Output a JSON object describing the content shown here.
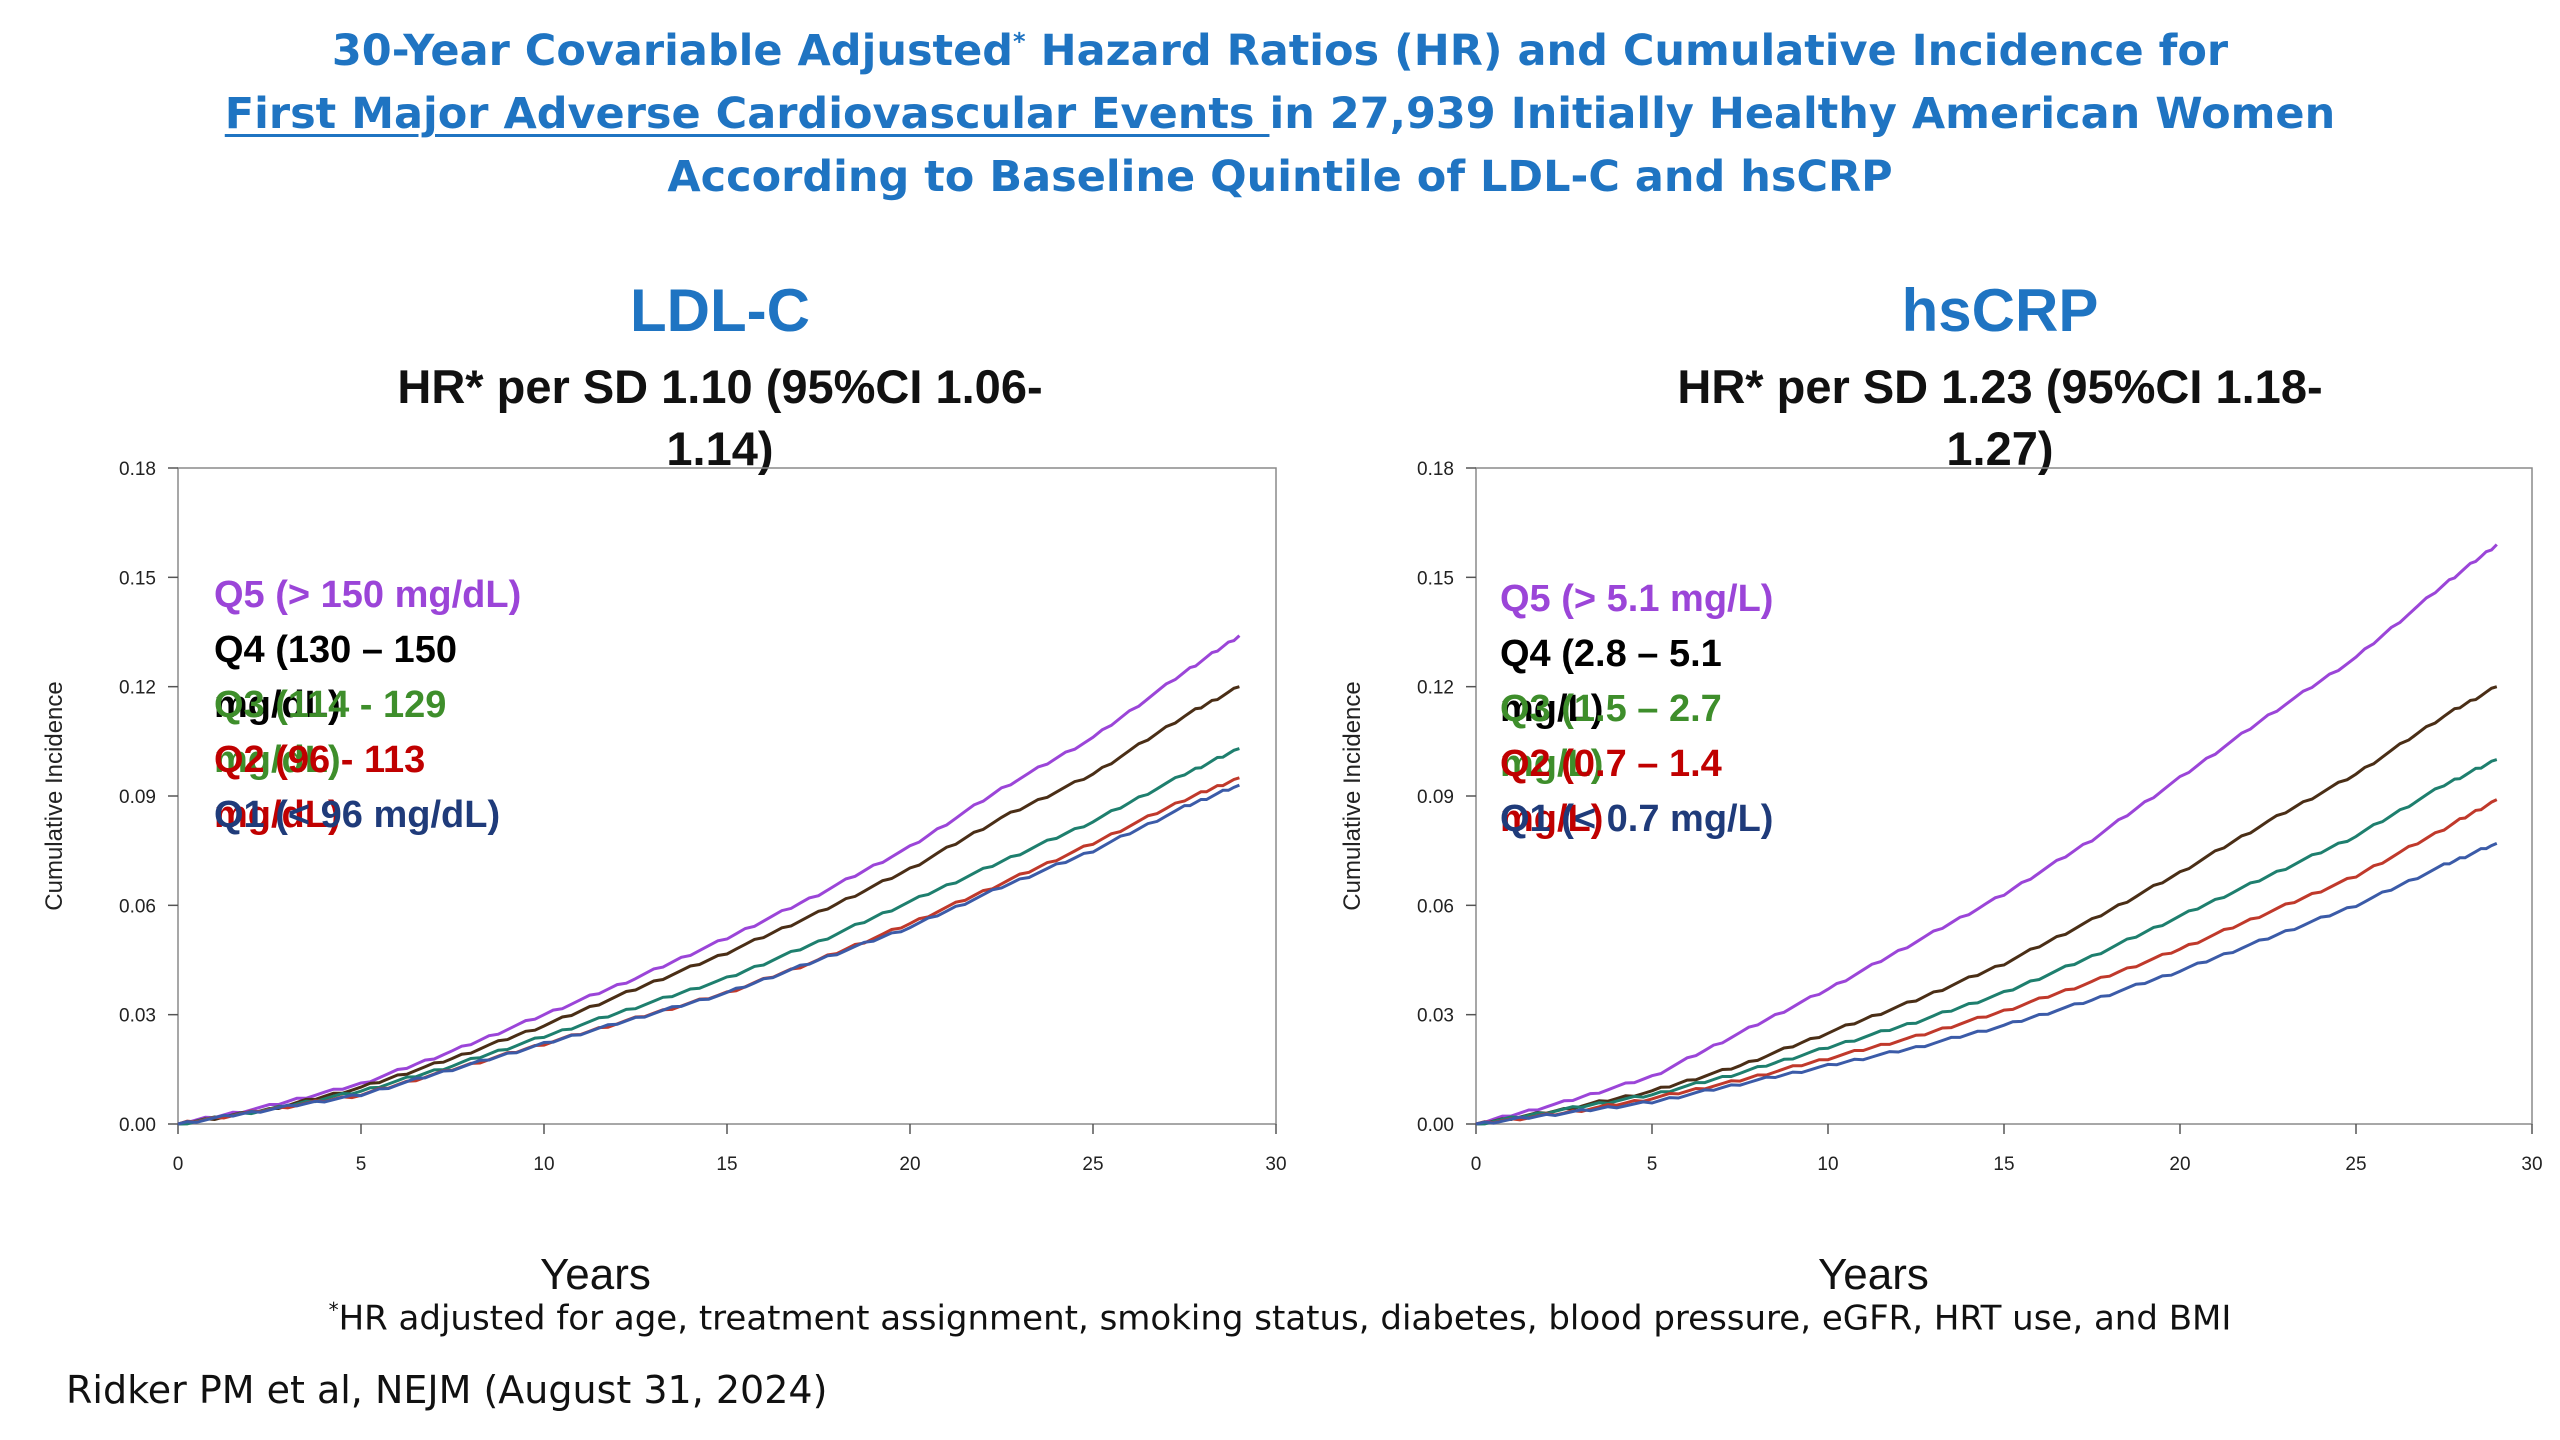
{
  "title": {
    "line1_pre": "30-Year Covariable Adjusted",
    "line1_sup": "*",
    "line1_post": " Hazard Ratios (HR) and Cumulative Incidence for",
    "line2_underlined": "First Major Adverse Cardiovascular Events ",
    "line2_rest": "in 27,939 Initially Healthy American Women",
    "line3": "According to Baseline Quintile of LDL-C and hsCRP"
  },
  "footnote": {
    "sup": "*",
    "text": "HR adjusted for age, treatment assignment, smoking status, diabetes, blood pressure, eGFR, HRT use, and BMI"
  },
  "citation": "Ridker PM et al, NEJM (August 31, 2024)",
  "colors": {
    "title": "#1f74c2",
    "Q5": "#9b45d8",
    "Q4": "#4a2e16",
    "Q3": "#1e7f6e",
    "Q2": "#c0392b",
    "Q1": "#3b5ba8",
    "legend_Q3": "#3e8e2b",
    "legend_Q2": "#c00000",
    "legend_Q1": "#1f3b7a"
  },
  "chart_data": [
    {
      "type": "line",
      "title": "LDL-C",
      "subtitle_line1": "HR* per SD 1.10 (95%CI 1.06-",
      "subtitle_line2": "1.14)",
      "xlabel": "Years",
      "ylabel": "Cumulative Incidence",
      "xlim": [
        0,
        30
      ],
      "ylim": [
        0,
        0.18
      ],
      "x_ticks": [
        "0",
        "5",
        "10",
        "15",
        "20",
        "25",
        "30"
      ],
      "y_ticks": [
        "0.00",
        "0.03",
        "0.06",
        "0.09",
        "0.12",
        "0.15",
        "0.18"
      ],
      "grid": false,
      "legend_position": "top-left",
      "x": [
        0,
        2.5,
        5,
        7.5,
        10,
        12.5,
        15,
        17.5,
        20,
        22.5,
        25,
        27.5,
        29
      ],
      "series": [
        {
          "name": "Q5  (> 150 mg/dL)",
          "key": "Q5",
          "values": [
            0,
            0.005,
            0.011,
            0.02,
            0.03,
            0.04,
            0.051,
            0.063,
            0.076,
            0.092,
            0.106,
            0.124,
            0.134
          ]
        },
        {
          "name": "Q4  (130 – 150 mg/dL)",
          "key": "Q4",
          "values": [
            0,
            0.004,
            0.01,
            0.018,
            0.027,
            0.037,
            0.047,
            0.058,
            0.07,
            0.084,
            0.096,
            0.112,
            0.12
          ]
        },
        {
          "name": "Q3  (114 - 129 mg/dL)",
          "key": "Q3",
          "values": [
            0,
            0.004,
            0.009,
            0.016,
            0.024,
            0.032,
            0.04,
            0.05,
            0.061,
            0.072,
            0.083,
            0.096,
            0.103
          ]
        },
        {
          "name": "Q2  (96 - 113 mg/dL)",
          "key": "Q2",
          "values": [
            0,
            0.004,
            0.008,
            0.015,
            0.022,
            0.029,
            0.036,
            0.045,
            0.055,
            0.066,
            0.077,
            0.089,
            0.095
          ]
        },
        {
          "name": "Q1  (< 96 mg/dL)",
          "key": "Q1",
          "values": [
            0,
            0.004,
            0.008,
            0.015,
            0.022,
            0.029,
            0.036,
            0.045,
            0.054,
            0.065,
            0.075,
            0.087,
            0.093
          ]
        }
      ]
    },
    {
      "type": "line",
      "title": "hsCRP",
      "subtitle_line1": "HR* per SD 1.23 (95%CI 1.18-",
      "subtitle_line2": "1.27)",
      "xlabel": "Years",
      "ylabel": "Cumulative Incidence",
      "xlim": [
        0,
        30
      ],
      "ylim": [
        0,
        0.18
      ],
      "x_ticks": [
        "0",
        "5",
        "10",
        "15",
        "20",
        "25",
        "30"
      ],
      "y_ticks": [
        "0.00",
        "0.03",
        "0.06",
        "0.09",
        "0.12",
        "0.15",
        "0.18"
      ],
      "grid": false,
      "legend_position": "top-left",
      "x": [
        0,
        2.5,
        5,
        7.5,
        10,
        12.5,
        15,
        17.5,
        20,
        22.5,
        25,
        27.5,
        29
      ],
      "series": [
        {
          "name": "Q5  (> 5.1 mg/L)",
          "key": "Q5",
          "values": [
            0,
            0.006,
            0.013,
            0.025,
            0.037,
            0.05,
            0.063,
            0.078,
            0.095,
            0.112,
            0.128,
            0.148,
            0.159
          ]
        },
        {
          "name": "Q4  (2.8 – 5.1 mg/L)",
          "key": "Q4",
          "values": [
            0,
            0.004,
            0.009,
            0.016,
            0.025,
            0.034,
            0.044,
            0.056,
            0.069,
            0.083,
            0.096,
            0.112,
            0.12
          ]
        },
        {
          "name": "Q3  (1.5 – 2.7 mg/L)",
          "key": "Q3",
          "values": [
            0,
            0.004,
            0.008,
            0.014,
            0.021,
            0.028,
            0.036,
            0.046,
            0.057,
            0.068,
            0.079,
            0.093,
            0.1
          ]
        },
        {
          "name": "Q2  (0.7 – 1.4 mg/L)",
          "key": "Q2",
          "values": [
            0,
            0.003,
            0.007,
            0.012,
            0.018,
            0.024,
            0.031,
            0.039,
            0.048,
            0.058,
            0.068,
            0.081,
            0.089
          ]
        },
        {
          "name": "Q1  (< 0.7 mg/L)",
          "key": "Q1",
          "values": [
            0,
            0.003,
            0.006,
            0.011,
            0.016,
            0.021,
            0.027,
            0.034,
            0.042,
            0.051,
            0.06,
            0.071,
            0.077
          ]
        }
      ]
    }
  ]
}
